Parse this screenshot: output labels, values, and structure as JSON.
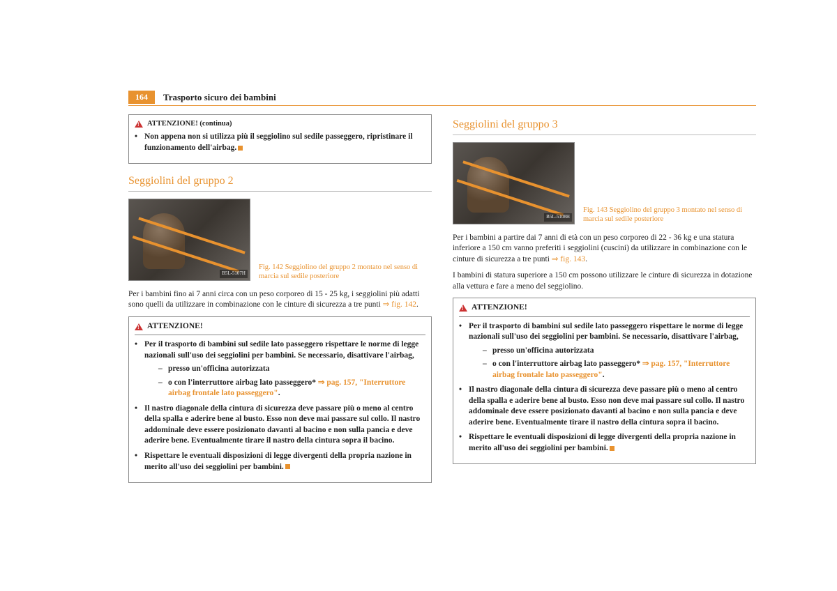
{
  "page_number": "164",
  "header_title": "Trasporto sicuro dei bambini",
  "left": {
    "cont_box": {
      "header": "ATTENZIONE! (continua)",
      "text": "Non appena non si utilizza più il seggiolino sul sedile passeggero, ripristinare il funzionamento dell'airbag."
    },
    "section_title": "Seggiolini del gruppo 2",
    "fig_label": "B5L-5107H",
    "fig_caption": "Fig. 142   Seggiolino del gruppo 2 montato nel senso di marcia sul sedile posteriore",
    "body": "Per i bambini fino ai 7 anni circa con un peso corporeo di 15 - 25 kg, i seggiolini più adatti sono quelli da utilizzare in combinazione con le cinture di sicurezza a tre punti ",
    "body_ref": "⇒ fig. 142",
    "warn": {
      "header": "ATTENZIONE!",
      "b1": "Per il trasporto di bambini sul sedile lato passeggero rispettare le norme di legge nazionali sull'uso dei seggiolini per bambini. Se necessario, disattivare l'airbag,",
      "d1": "presso un'officina autorizzata",
      "d2a": "o con l'interruttore airbag lato passeggero* ",
      "d2ref": "⇒ pag. 157, \"Interruttore airbag frontale lato passeggero\"",
      "b2": "Il nastro diagonale della cintura di sicurezza deve passare più o meno al centro della spalla e aderire bene al busto. Esso non deve mai passare sul collo. Il nastro addominale deve essere posizionato davanti al bacino  e non sulla pancia e deve aderire bene. Eventualmente tirare il nastro della cintura sopra il bacino.",
      "b3": "Rispettare le eventuali disposizioni di legge divergenti della propria nazione in merito all'uso dei seggiolini per bambini."
    }
  },
  "right": {
    "section_title": "Seggiolini del gruppo 3",
    "fig_label": "B5L-5108H",
    "fig_caption": "Fig. 143   Seggiolino del gruppo 3 montato nel senso di marcia sul sedile posteriore",
    "body1a": "Per i bambini a partire dai 7 anni di età con un peso corporeo di 22 - 36 kg e una statura inferiore a 150 cm vanno preferiti i seggiolini (cuscini) da utilizzare in combinazione con le cinture di sicurezza a tre punti ",
    "body1_ref": "⇒ fig. 143",
    "body2": "I bambini di statura superiore a 150 cm possono utilizzare le cinture di sicurezza in dotazione alla vettura e fare a meno del seggiolino.",
    "warn": {
      "header": "ATTENZIONE!",
      "b1": "Per il trasporto di bambini sul sedile lato passeggero rispettare le norme di legge nazionali sull'uso dei seggiolini per bambini. Se necessario, disattivare l'airbag,",
      "d1": "presso un'officina autorizzata",
      "d2a": "o con l'interruttore airbag lato passeggero* ",
      "d2ref": "⇒ pag. 157, \"Interruttore airbag frontale lato passeggero\"",
      "b2": "Il nastro diagonale della cintura di sicurezza deve passare più o meno al centro della spalla e aderire bene al busto. Esso non deve mai passare sul collo. Il nastro addominale deve essere posizionato davanti al bacino  e non sulla pancia e deve aderire bene. Eventualmente tirare il nastro della cintura sopra il bacino.",
      "b3": "Rispettare le eventuali disposizioni di legge divergenti della propria nazione in merito all'uso dei seggiolini per bambini."
    }
  }
}
